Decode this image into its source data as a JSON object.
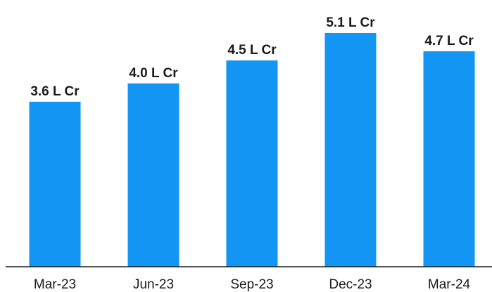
{
  "chart_data": {
    "type": "bar",
    "categories": [
      "Mar-23",
      "Jun-23",
      "Sep-23",
      "Dec-23",
      "Mar-24"
    ],
    "values": [
      3.6,
      4.0,
      4.5,
      5.1,
      4.7
    ],
    "data_labels": [
      "3.6 L Cr",
      "4.0 L Cr",
      "4.5 L Cr",
      "5.1 L Cr",
      "4.7 L Cr"
    ],
    "title": "",
    "xlabel": "",
    "ylabel": "",
    "ylim": [
      0,
      5.5
    ],
    "grid": false,
    "legend": "none",
    "bar_color": "#1396f3"
  }
}
